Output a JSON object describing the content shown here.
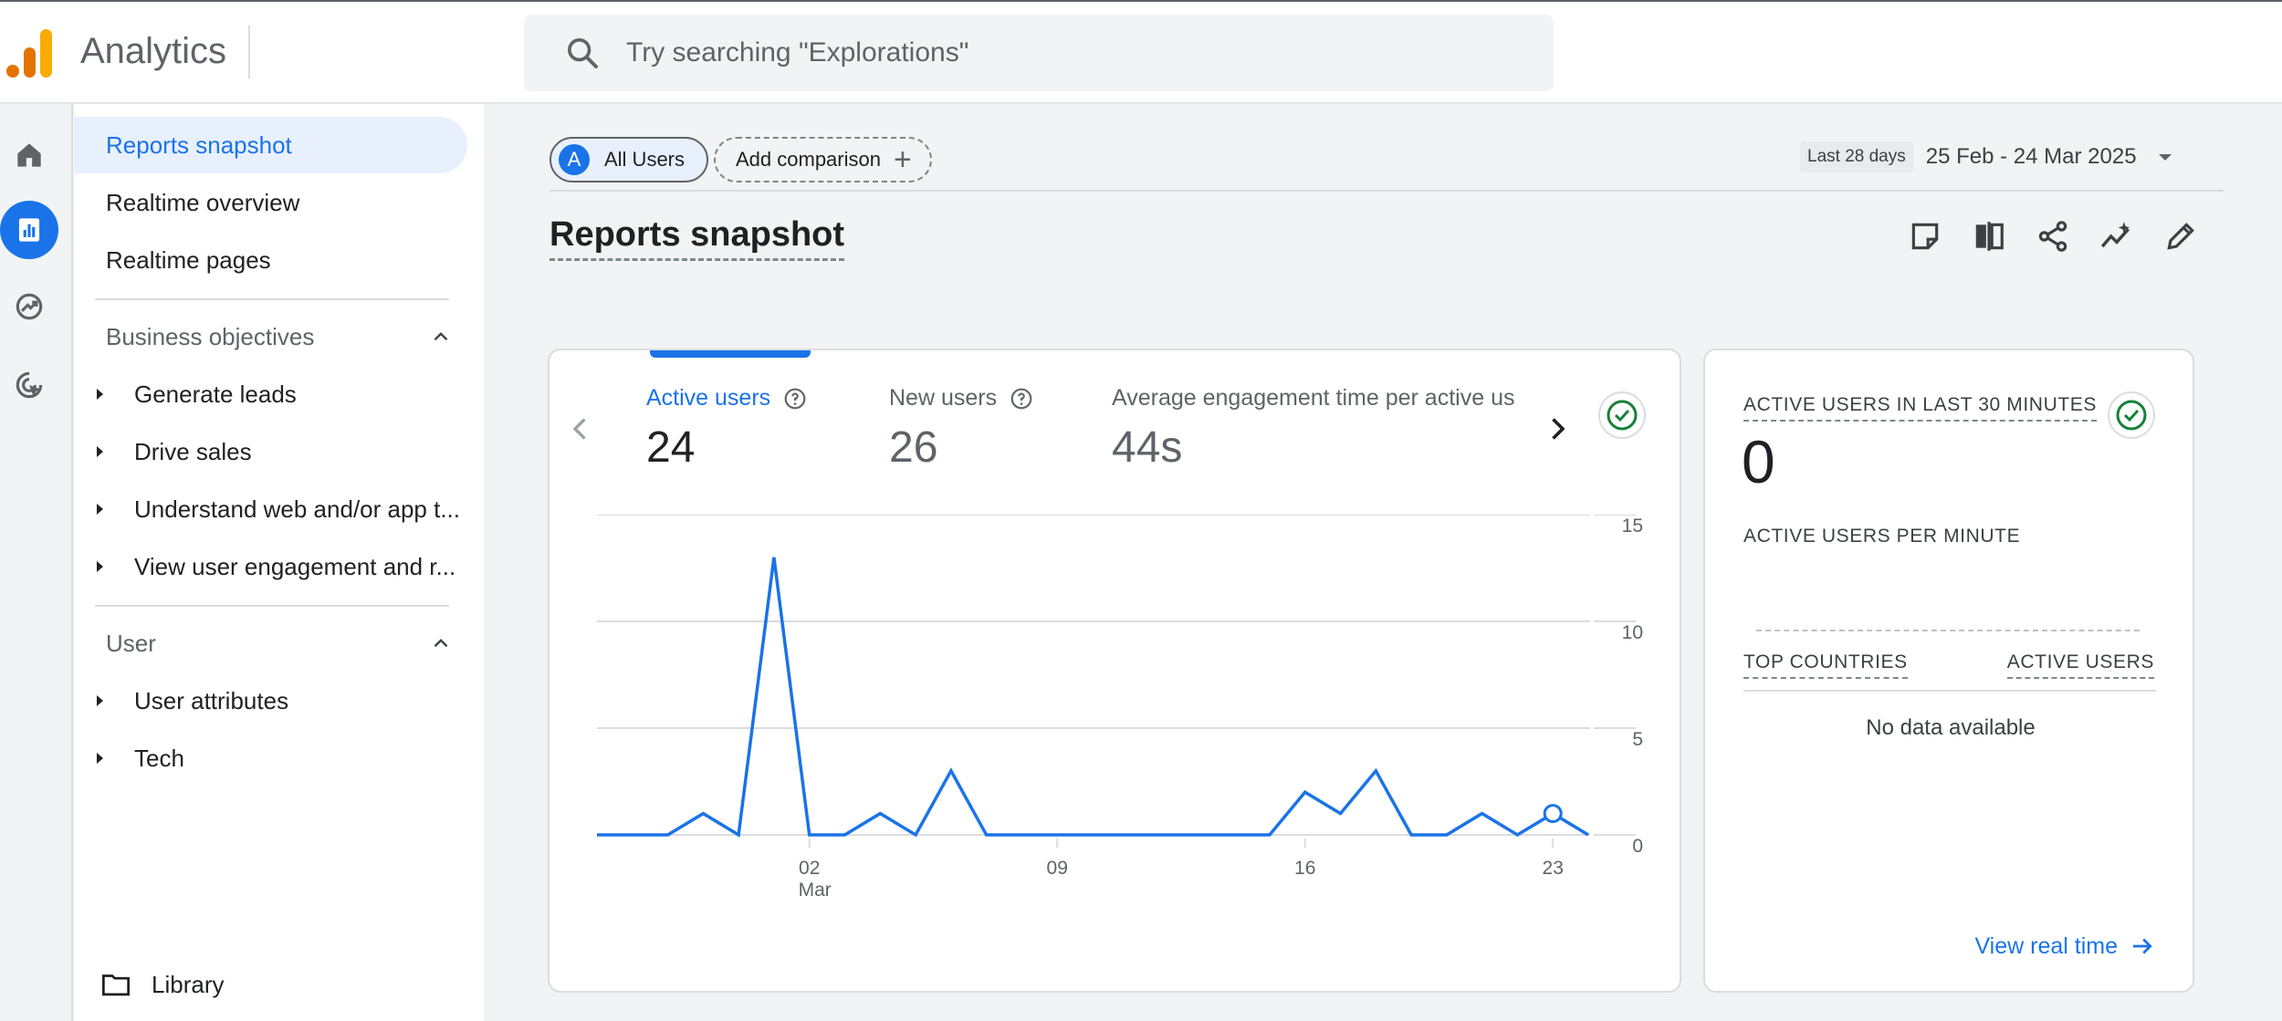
{
  "app": {
    "title": "Analytics"
  },
  "search": {
    "placeholder": "Try searching \"Explorations\""
  },
  "nav": {
    "top_items": [
      "Reports snapshot",
      "Realtime overview",
      "Realtime pages"
    ],
    "sections": [
      {
        "title": "Business objectives",
        "items": [
          "Generate leads",
          "Drive sales",
          "Understand web and/or app t...",
          "View user engagement and r..."
        ]
      },
      {
        "title": "User",
        "items": [
          "User attributes",
          "Tech"
        ]
      }
    ],
    "library": "Library"
  },
  "comparison": {
    "segment_avatar": "A",
    "segment_label": "All Users",
    "add_label": "Add comparison"
  },
  "date_range": {
    "tag": "Last 28 days",
    "text": "25 Feb - 24 Mar 2025"
  },
  "page": {
    "title": "Reports snapshot"
  },
  "metrics": [
    {
      "label": "Active users",
      "value": "24"
    },
    {
      "label": "New users",
      "value": "26"
    },
    {
      "label": "Average engagement time per active us",
      "value": "44s"
    }
  ],
  "chart_data": {
    "type": "line",
    "x": [
      "24 Feb",
      "25 Feb",
      "26 Feb",
      "27 Feb",
      "28 Feb",
      "01 Mar",
      "02 Mar",
      "03 Mar",
      "04 Mar",
      "05 Mar",
      "06 Mar",
      "07 Mar",
      "08 Mar",
      "09 Mar",
      "10 Mar",
      "11 Mar",
      "12 Mar",
      "13 Mar",
      "14 Mar",
      "15 Mar",
      "16 Mar",
      "17 Mar",
      "18 Mar",
      "19 Mar",
      "20 Mar",
      "21 Mar",
      "22 Mar",
      "23 Mar",
      "24 Mar"
    ],
    "series": [
      {
        "name": "Active users",
        "values": [
          0,
          0,
          0,
          1,
          0,
          13,
          0,
          0,
          1,
          0,
          3,
          0,
          0,
          0,
          0,
          0,
          0,
          0,
          0,
          0,
          2,
          1,
          3,
          0,
          0,
          1,
          0,
          1,
          0
        ]
      }
    ],
    "x_tick_labels": [
      {
        "day": "02",
        "month": "Mar"
      },
      {
        "day": "09",
        "month": ""
      },
      {
        "day": "16",
        "month": ""
      },
      {
        "day": "23",
        "month": ""
      }
    ],
    "y_ticks": [
      "0",
      "5",
      "10",
      "15"
    ],
    "ylim": [
      0,
      15
    ],
    "color": "#1a73e8",
    "highlight_point": "23 Mar",
    "grid": true
  },
  "realtime": {
    "title": "ACTIVE USERS IN LAST 30 MINUTES",
    "count": "0",
    "per_minute_label": "ACTIVE USERS PER MINUTE",
    "col_country": "TOP COUNTRIES",
    "col_users": "ACTIVE USERS",
    "empty": "No data available",
    "link": "View real time"
  },
  "colors": {
    "accent": "#1a73e8",
    "success": "#188038",
    "logo_orange": "#f9ab00",
    "logo_dark_orange": "#e37400"
  }
}
